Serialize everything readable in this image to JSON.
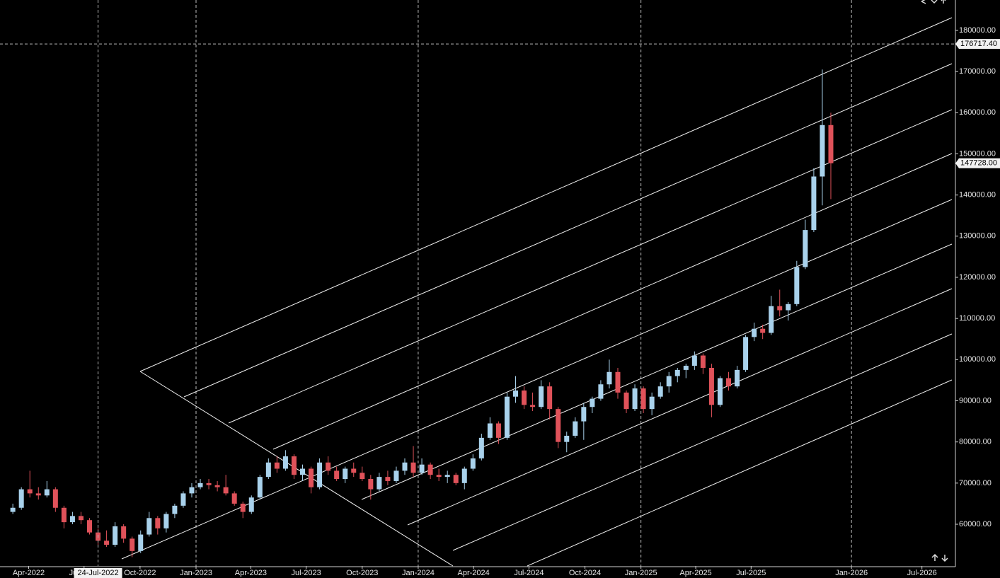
{
  "chart_data": {
    "type": "candlestick",
    "x": [
      "2022-03-06",
      "2022-03-20",
      "2022-04-03",
      "2022-04-17",
      "2022-05-01",
      "2022-05-15",
      "2022-05-29",
      "2022-06-12",
      "2022-06-26",
      "2022-07-10",
      "2022-07-24",
      "2022-08-07",
      "2022-08-21",
      "2022-09-04",
      "2022-09-18",
      "2022-10-02",
      "2022-10-16",
      "2022-10-30",
      "2022-11-13",
      "2022-11-27",
      "2022-12-11",
      "2022-12-25",
      "2023-01-08",
      "2023-01-22",
      "2023-02-05",
      "2023-02-19",
      "2023-03-05",
      "2023-03-19",
      "2023-04-02",
      "2023-04-16",
      "2023-04-30",
      "2023-05-14",
      "2023-05-28",
      "2023-06-11",
      "2023-06-25",
      "2023-07-09",
      "2023-07-23",
      "2023-08-06",
      "2023-08-20",
      "2023-09-03",
      "2023-09-17",
      "2023-10-01",
      "2023-10-15",
      "2023-10-29",
      "2023-11-12",
      "2023-11-26",
      "2023-12-10",
      "2023-12-24",
      "2024-01-07",
      "2024-01-21",
      "2024-02-04",
      "2024-02-18",
      "2024-03-03",
      "2024-03-17",
      "2024-03-31",
      "2024-04-14",
      "2024-04-28",
      "2024-05-12",
      "2024-05-26",
      "2024-06-09",
      "2024-06-23",
      "2024-07-07",
      "2024-07-21",
      "2024-08-04",
      "2024-08-18",
      "2024-09-01",
      "2024-09-15",
      "2024-09-29",
      "2024-10-13",
      "2024-10-27",
      "2024-11-10",
      "2024-11-24",
      "2024-12-08",
      "2024-12-22",
      "2025-01-05",
      "2025-01-19",
      "2025-02-02",
      "2025-02-16",
      "2025-03-02",
      "2025-03-16",
      "2025-03-30",
      "2025-04-13",
      "2025-04-27",
      "2025-05-11",
      "2025-05-25",
      "2025-06-08",
      "2025-06-22",
      "2025-07-06",
      "2025-07-20",
      "2025-08-03",
      "2025-08-17",
      "2025-08-31",
      "2025-09-14",
      "2025-09-28",
      "2025-10-12",
      "2025-10-26",
      "2025-11-09"
    ],
    "open": [
      63000,
      64000,
      68500,
      67500,
      67000,
      68500,
      64000,
      60500,
      62000,
      61000,
      58000,
      56000,
      55000,
      59500,
      56500,
      53500,
      57500,
      61500,
      59000,
      62500,
      64500,
      67500,
      69000,
      70000,
      69500,
      69000,
      67500,
      65000,
      63000,
      66500,
      71500,
      75000,
      73500,
      76500,
      72000,
      73500,
      69000,
      75000,
      73000,
      71000,
      73500,
      72500,
      71000,
      68500,
      71500,
      70500,
      73000,
      75000,
      72500,
      74500,
      72000,
      71500,
      72000,
      70000,
      73500,
      76000,
      81000,
      84500,
      81000,
      91000,
      92500,
      89000,
      88500,
      93500,
      88000,
      80000,
      81500,
      85000,
      88500,
      90500,
      94000,
      97000,
      92000,
      88000,
      93000,
      88000,
      91000,
      93500,
      96000,
      97500,
      98500,
      101000,
      98000,
      89000,
      95500,
      93500,
      97500,
      105500,
      107500,
      106500,
      113000,
      112000,
      113500,
      122500,
      131500,
      144500,
      157000
    ],
    "high": [
      65000,
      69000,
      73000,
      69000,
      70500,
      69000,
      64500,
      63000,
      63000,
      61500,
      59000,
      58500,
      60500,
      60000,
      57000,
      58500,
      63000,
      62000,
      63000,
      65000,
      68000,
      70000,
      71000,
      71000,
      70500,
      72000,
      68000,
      65500,
      67000,
      72000,
      76000,
      76500,
      78000,
      77000,
      74500,
      74000,
      76000,
      76500,
      74000,
      74000,
      75000,
      74000,
      72000,
      72500,
      73000,
      74000,
      76000,
      79000,
      76000,
      75000,
      73500,
      73000,
      72500,
      74000,
      77000,
      82000,
      86000,
      85000,
      92000,
      96000,
      93500,
      92000,
      95000,
      94500,
      88500,
      82500,
      86000,
      89500,
      91000,
      95000,
      100000,
      98000,
      92500,
      94000,
      93500,
      92000,
      94500,
      97000,
      98000,
      99000,
      102000,
      101500,
      99000,
      96000,
      97000,
      98500,
      106000,
      109000,
      108500,
      115500,
      117000,
      114000,
      124000,
      134000,
      146500,
      170500,
      160000
    ],
    "low": [
      62500,
      63500,
      66500,
      66000,
      66500,
      63000,
      59000,
      60000,
      60000,
      57500,
      55000,
      54500,
      54500,
      55500,
      52000,
      53000,
      57000,
      57500,
      58000,
      61500,
      64000,
      66500,
      68500,
      68500,
      68000,
      67000,
      64500,
      61500,
      62500,
      66000,
      71000,
      72500,
      73000,
      71000,
      70500,
      67500,
      68500,
      72000,
      70500,
      70000,
      71500,
      70500,
      66000,
      68000,
      69500,
      70000,
      72000,
      71500,
      72000,
      71000,
      70500,
      70000,
      69500,
      68500,
      73000,
      75500,
      80500,
      79500,
      80500,
      89500,
      88000,
      87500,
      88000,
      85500,
      78500,
      77500,
      81000,
      80500,
      87000,
      90000,
      93000,
      90500,
      87000,
      87500,
      87000,
      86500,
      90500,
      92000,
      94500,
      95500,
      97500,
      96500,
      86000,
      88500,
      92500,
      93000,
      97000,
      104500,
      105000,
      106000,
      110500,
      109500,
      113000,
      122000,
      131000,
      137500,
      139000
    ],
    "close": [
      64000,
      68500,
      67500,
      67000,
      68500,
      64000,
      60500,
      62000,
      61000,
      58000,
      56000,
      55000,
      59500,
      56500,
      53500,
      57500,
      61500,
      59000,
      62500,
      64500,
      67500,
      69000,
      70000,
      69500,
      69000,
      67500,
      65000,
      63000,
      66500,
      71500,
      75000,
      73500,
      76500,
      72000,
      73500,
      69000,
      75000,
      73000,
      71000,
      73500,
      72500,
      71000,
      68500,
      71500,
      70500,
      73000,
      75000,
      72500,
      74500,
      72000,
      71500,
      72000,
      70000,
      73500,
      76000,
      81000,
      84500,
      81000,
      91000,
      92500,
      89000,
      88500,
      93500,
      88000,
      80000,
      81500,
      85000,
      88500,
      90500,
      94000,
      97000,
      92000,
      88000,
      93000,
      88000,
      91000,
      93500,
      96000,
      97500,
      98500,
      101000,
      98000,
      89000,
      95500,
      93500,
      97500,
      105500,
      107500,
      106500,
      113000,
      112000,
      113500,
      122500,
      131500,
      144500,
      157000,
      147728
    ],
    "up_color": "#a9d2ec",
    "down_color": "#e0525a",
    "ylim": [
      49860,
      187390
    ],
    "yticks": [
      {
        "value": 60000,
        "label": "60000.00"
      },
      {
        "value": 70000,
        "label": "70000.00"
      },
      {
        "value": 80000,
        "label": "80000.00"
      },
      {
        "value": 90000,
        "label": "90000.00"
      },
      {
        "value": 100000,
        "label": "100000.00"
      },
      {
        "value": 110000,
        "label": "110000.00"
      },
      {
        "value": 120000,
        "label": "120000.00"
      },
      {
        "value": 130000,
        "label": "130000.00"
      },
      {
        "value": 140000,
        "label": "140000.00"
      },
      {
        "value": 150000,
        "label": "150000.00"
      },
      {
        "value": 160000,
        "label": "160000.00"
      },
      {
        "value": 170000,
        "label": "170000.00"
      },
      {
        "value": 180000,
        "label": "180000.00"
      }
    ],
    "xticks": [
      {
        "value": "2022-04-01",
        "label": "Apr-2022"
      },
      {
        "value": "2022-07-01",
        "label": "Jul-2022"
      },
      {
        "value": "2022-10-01",
        "label": "Oct-2022"
      },
      {
        "value": "2023-01-01",
        "label": "Jan-2023"
      },
      {
        "value": "2023-04-01",
        "label": "Apr-2023"
      },
      {
        "value": "2023-07-01",
        "label": "Jul-2023"
      },
      {
        "value": "2023-10-01",
        "label": "Oct-2023"
      },
      {
        "value": "2024-01-01",
        "label": "Jan-2024"
      },
      {
        "value": "2024-04-01",
        "label": "Apr-2024"
      },
      {
        "value": "2024-07-01",
        "label": "Jul-2024"
      },
      {
        "value": "2024-10-01",
        "label": "Oct-2024"
      },
      {
        "value": "2025-01-01",
        "label": "Jan-2025"
      },
      {
        "value": "2025-04-01",
        "label": "Apr-2025"
      },
      {
        "value": "2025-07-01",
        "label": "Jul-2025"
      },
      {
        "value": "2026-01-01",
        "label": "Jan-2026"
      },
      {
        "value": "2026-07-01",
        "label": "Jul-2026"
      }
    ],
    "xgrid_every": "Jan",
    "crosshair": {
      "date": "24-Jul-2022",
      "x": "2022-07-24",
      "price": {
        "value": 176717.4,
        "label": "176717.40"
      }
    },
    "last_price": {
      "value": 147728,
      "label": "147728.00"
    }
  }
}
